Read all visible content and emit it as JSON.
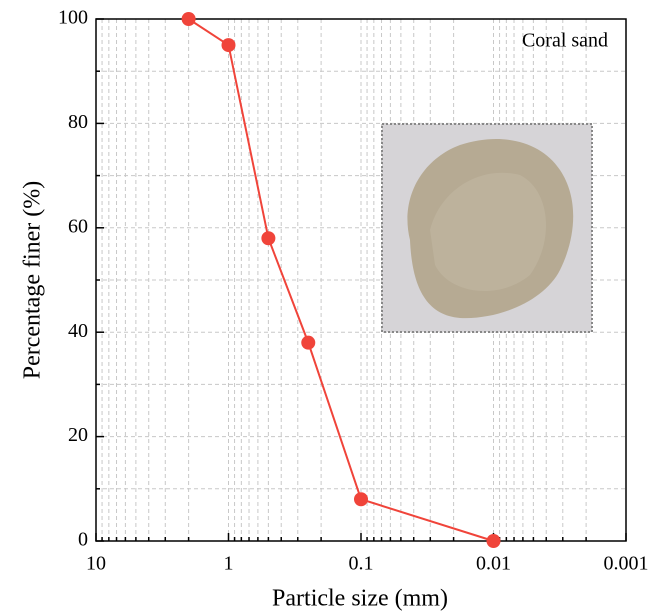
{
  "chart_data": {
    "type": "line",
    "annotation": "Coral sand",
    "xlabel": "Particle size  (mm)",
    "ylabel": "Percentage finer (%)",
    "x": [
      2,
      1,
      0.5,
      0.25,
      0.1,
      0.01
    ],
    "series": [
      {
        "name": "Coral sand",
        "color": "#f0443a",
        "values": [
          100,
          95,
          58,
          38,
          8,
          0
        ]
      }
    ],
    "xscale": "log",
    "xlim": [
      10,
      0.001
    ],
    "xticks": [
      10,
      1,
      0.1,
      0.01,
      0.001
    ],
    "ylim": [
      0,
      100
    ],
    "yticks": [
      0,
      20,
      40,
      60,
      80,
      100
    ],
    "grid": true
  }
}
